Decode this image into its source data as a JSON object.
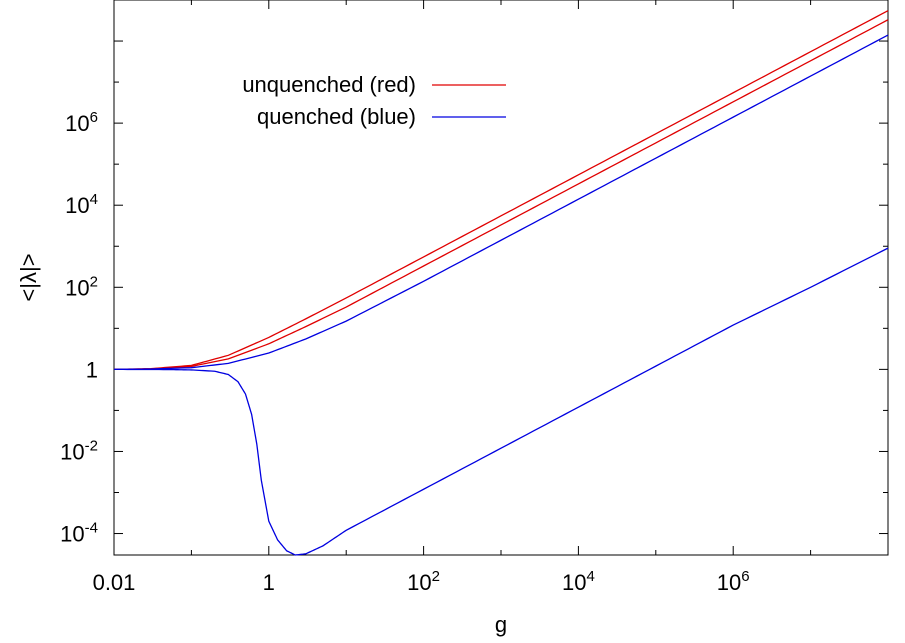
{
  "chart_data": {
    "type": "line",
    "xlabel": "g",
    "ylabel": "<|λ|>",
    "xscale": "log",
    "yscale": "log",
    "xlim": [
      0.01,
      100000000
    ],
    "ylim": [
      3e-05,
      1000000000
    ],
    "grid": false,
    "legend_position": "top-left",
    "x_ticks": [
      {
        "value": 0.01,
        "base": "0.01",
        "exp": ""
      },
      {
        "value": 1,
        "base": "1",
        "exp": ""
      },
      {
        "value": 100,
        "base": "10",
        "exp": "2"
      },
      {
        "value": 10000,
        "base": "10",
        "exp": "4"
      },
      {
        "value": 1000000,
        "base": "10",
        "exp": "6"
      }
    ],
    "y_ticks": [
      {
        "value": 0.0001,
        "base": "10",
        "exp": "-4"
      },
      {
        "value": 0.01,
        "base": "10",
        "exp": "-2"
      },
      {
        "value": 1,
        "base": "1",
        "exp": ""
      },
      {
        "value": 100,
        "base": "10",
        "exp": "2"
      },
      {
        "value": 10000,
        "base": "10",
        "exp": "4"
      },
      {
        "value": 1000000,
        "base": "10",
        "exp": "6"
      }
    ],
    "legend": [
      {
        "label": "unquenched (red)",
        "color": "#e00000"
      },
      {
        "label": "quenched (blue)",
        "color": "#0000e0"
      }
    ],
    "series": [
      {
        "color": "#e00000",
        "x": [
          0.01,
          0.03,
          0.1,
          0.3,
          1,
          3,
          10,
          100,
          1000,
          10000,
          100000,
          1000000,
          10000000,
          100000000
        ],
        "y": [
          1.0,
          1.04,
          1.25,
          2.2,
          6.0,
          17,
          55,
          550,
          5500,
          55000,
          550000,
          5500000,
          55000000,
          550000000
        ]
      },
      {
        "color": "#e00000",
        "x": [
          0.01,
          0.03,
          0.1,
          0.3,
          1,
          3,
          10,
          100,
          1000,
          10000,
          100000,
          1000000,
          10000000,
          100000000
        ],
        "y": [
          1.0,
          1.03,
          1.18,
          1.8,
          4.2,
          11,
          33,
          330,
          3300,
          33000,
          330000,
          3300000,
          33000000,
          330000000
        ]
      },
      {
        "color": "#0000e0",
        "x": [
          0.01,
          0.03,
          0.1,
          0.3,
          1,
          3,
          10,
          100,
          1000,
          10000,
          100000,
          1000000,
          10000000,
          100000000
        ],
        "y": [
          1.0,
          1.02,
          1.1,
          1.4,
          2.5,
          5.5,
          15,
          140,
          1400,
          14000,
          140000,
          1400000,
          14000000,
          140000000
        ]
      },
      {
        "color": "#0000e0",
        "x": [
          0.01,
          0.05,
          0.1,
          0.2,
          0.3,
          0.4,
          0.5,
          0.6,
          0.7,
          0.8,
          1.0,
          1.3,
          1.7,
          2.2,
          3,
          5,
          10,
          100,
          1000,
          10000,
          100000,
          1000000,
          10000000,
          100000000
        ],
        "y": [
          1.0,
          0.99,
          0.97,
          0.9,
          0.75,
          0.5,
          0.25,
          0.08,
          0.015,
          0.002,
          0.0002,
          7e-05,
          3.8e-05,
          3e-05,
          3.2e-05,
          5e-05,
          0.00012,
          0.0012,
          0.012,
          0.12,
          1.2,
          12,
          100,
          900
        ]
      }
    ]
  }
}
